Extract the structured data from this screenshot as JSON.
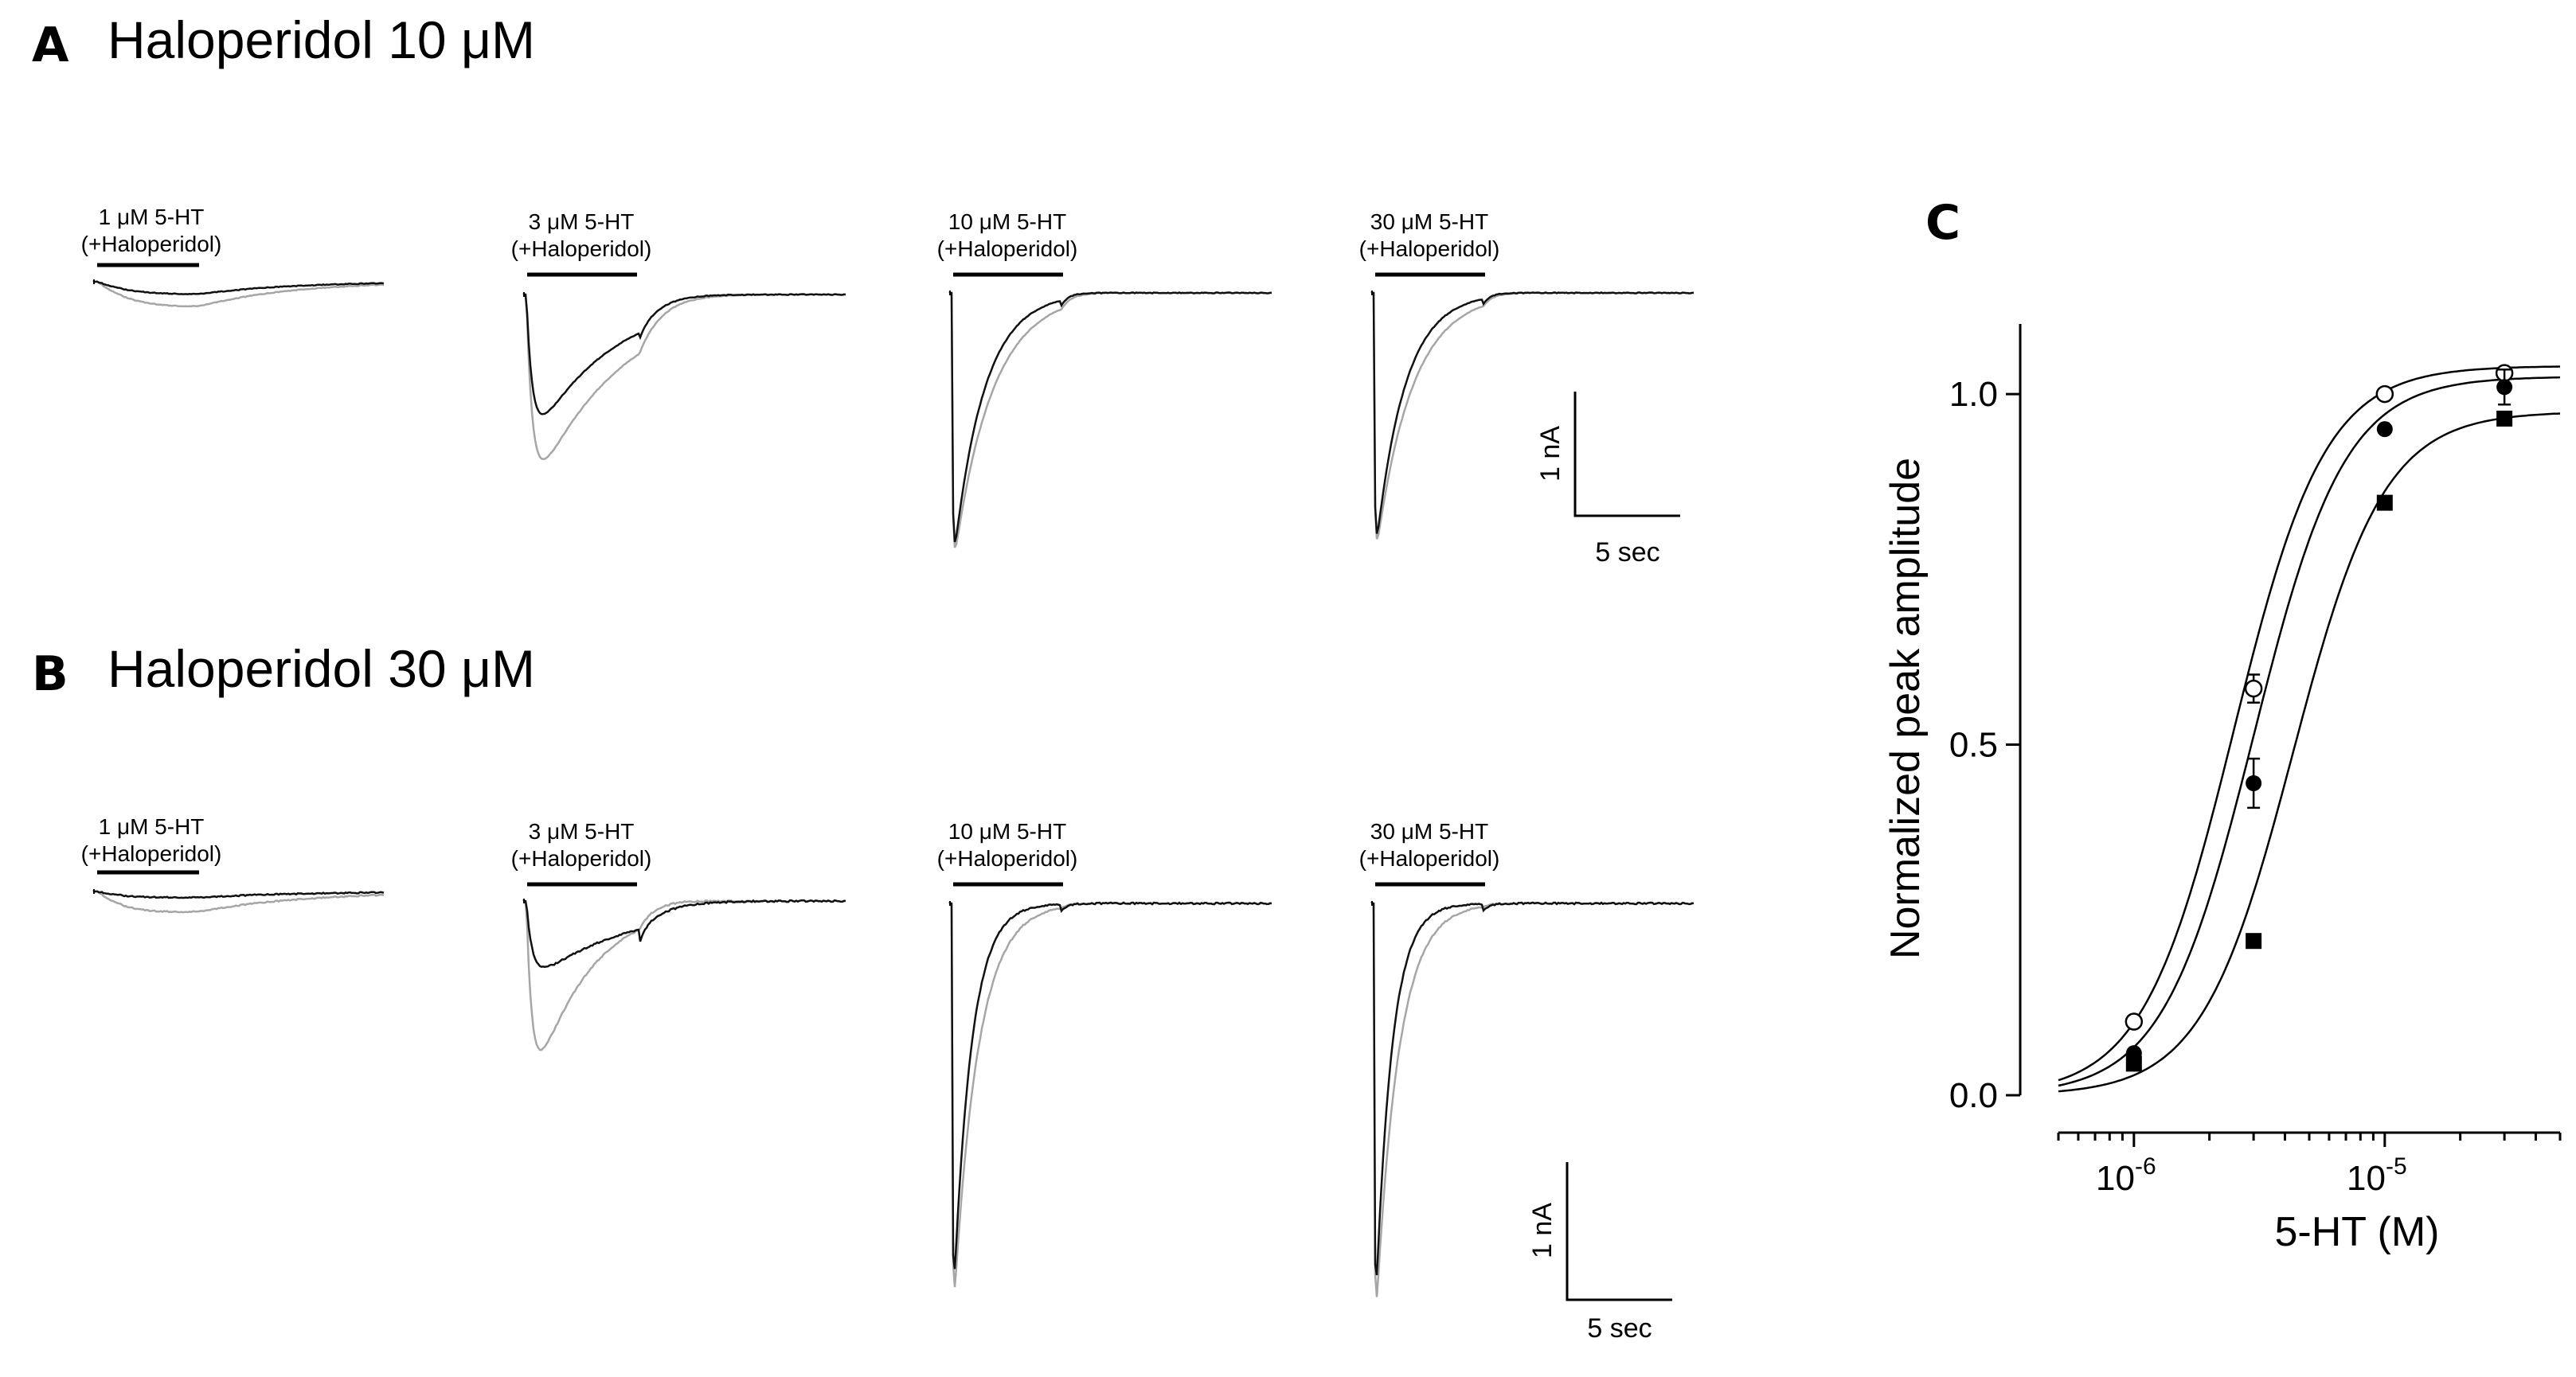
{
  "panel_a": {
    "letter": "A",
    "title": "Haloperidol 10 μM",
    "traces": [
      {
        "line1": "1 μM 5-HT",
        "line2": "(+Haloperidol)"
      },
      {
        "line1": "3 μM 5-HT",
        "line2": "(+Haloperidol)"
      },
      {
        "line1": "10 μM 5-HT",
        "line2": "(+Haloperidol)"
      },
      {
        "line1": "30 μM 5-HT",
        "line2": "(+Haloperidol)"
      }
    ],
    "scale": {
      "current": "1 nA",
      "time": "5 sec"
    }
  },
  "panel_b": {
    "letter": "B",
    "title": "Haloperidol 30 μM",
    "traces": [
      {
        "line1": "1 μM 5-HT",
        "line2": "(+Haloperidol)"
      },
      {
        "line1": "3 μM 5-HT",
        "line2": "(+Haloperidol)"
      },
      {
        "line1": "10 μM 5-HT",
        "line2": "(+Haloperidol)"
      },
      {
        "line1": "30 μM 5-HT",
        "line2": "(+Haloperidol)"
      }
    ],
    "scale": {
      "current": "1 nA",
      "time": "5 sec"
    }
  },
  "panel_c": {
    "letter": "C"
  },
  "colors": {
    "trace_control": "#a6a6a6",
    "trace_drug": "#111111",
    "ink": "#000000"
  },
  "chart_data": {
    "type": "scatter",
    "xlabel": "5-HT (M)",
    "ylabel": "Normalized peak amplitude",
    "xscale": "log",
    "xlim": [
      5e-07,
      5e-05
    ],
    "ylim": [
      0,
      1.1
    ],
    "x_ticks": [
      {
        "mantissa": "10",
        "exponent": "-6",
        "value": 1e-06
      },
      {
        "mantissa": "10",
        "exponent": "-5",
        "value": 1e-05
      }
    ],
    "y_ticks": [
      {
        "value": 0.0,
        "label": "0.0"
      },
      {
        "value": 0.5,
        "label": "0.5"
      },
      {
        "value": 1.0,
        "label": "1.0"
      }
    ],
    "grid": false,
    "legend": "none",
    "series": [
      {
        "marker": "open-circle",
        "points": [
          {
            "x": 1e-06,
            "y": 0.105
          },
          {
            "x": 3e-06,
            "y": 0.58,
            "err": 0.02
          },
          {
            "x": 1e-05,
            "y": 1.0
          },
          {
            "x": 3e-05,
            "y": 1.03
          }
        ],
        "fit": {
          "top": 1.04,
          "ec50": 2.5e-06,
          "hill": 2.4
        }
      },
      {
        "marker": "filled-circle",
        "points": [
          {
            "x": 1e-06,
            "y": 0.06
          },
          {
            "x": 3e-06,
            "y": 0.445,
            "err": 0.035
          },
          {
            "x": 1e-05,
            "y": 0.95
          },
          {
            "x": 3e-05,
            "y": 1.01,
            "err": 0.025
          }
        ],
        "fit": {
          "top": 1.025,
          "ec50": 3e-06,
          "hill": 2.4
        }
      },
      {
        "marker": "filled-square",
        "points": [
          {
            "x": 1e-06,
            "y": 0.045
          },
          {
            "x": 3e-06,
            "y": 0.22
          },
          {
            "x": 1e-05,
            "y": 0.845
          },
          {
            "x": 3e-05,
            "y": 0.965
          }
        ],
        "fit": {
          "top": 0.975,
          "ec50": 4.3e-06,
          "hill": 2.4
        }
      }
    ]
  }
}
